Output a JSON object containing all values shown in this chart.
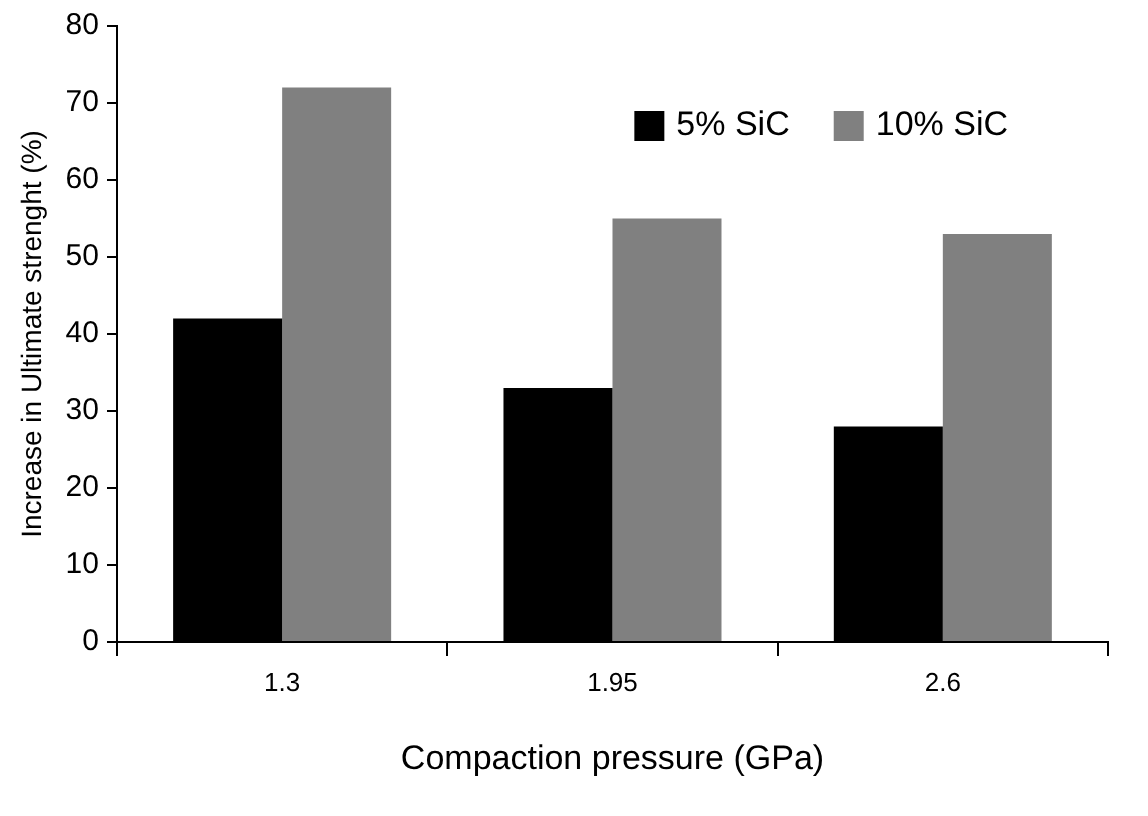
{
  "chart_data": {
    "type": "bar",
    "xlabel": "Compaction pressure (GPa)",
    "ylabel": "Increase in Ultimate strenght (%)",
    "categories": [
      "1.3",
      "1.95",
      "2.6"
    ],
    "series": [
      {
        "name": "5% SiC",
        "color": "#000000",
        "values": [
          42,
          33,
          28
        ]
      },
      {
        "name": "10% SiC",
        "color": "#808080",
        "values": [
          72,
          55,
          53
        ]
      }
    ],
    "ylim": [
      0,
      80
    ],
    "yticks": [
      0,
      10,
      20,
      30,
      40,
      50,
      60,
      70,
      80
    ],
    "grid": false,
    "legend": "top right"
  }
}
